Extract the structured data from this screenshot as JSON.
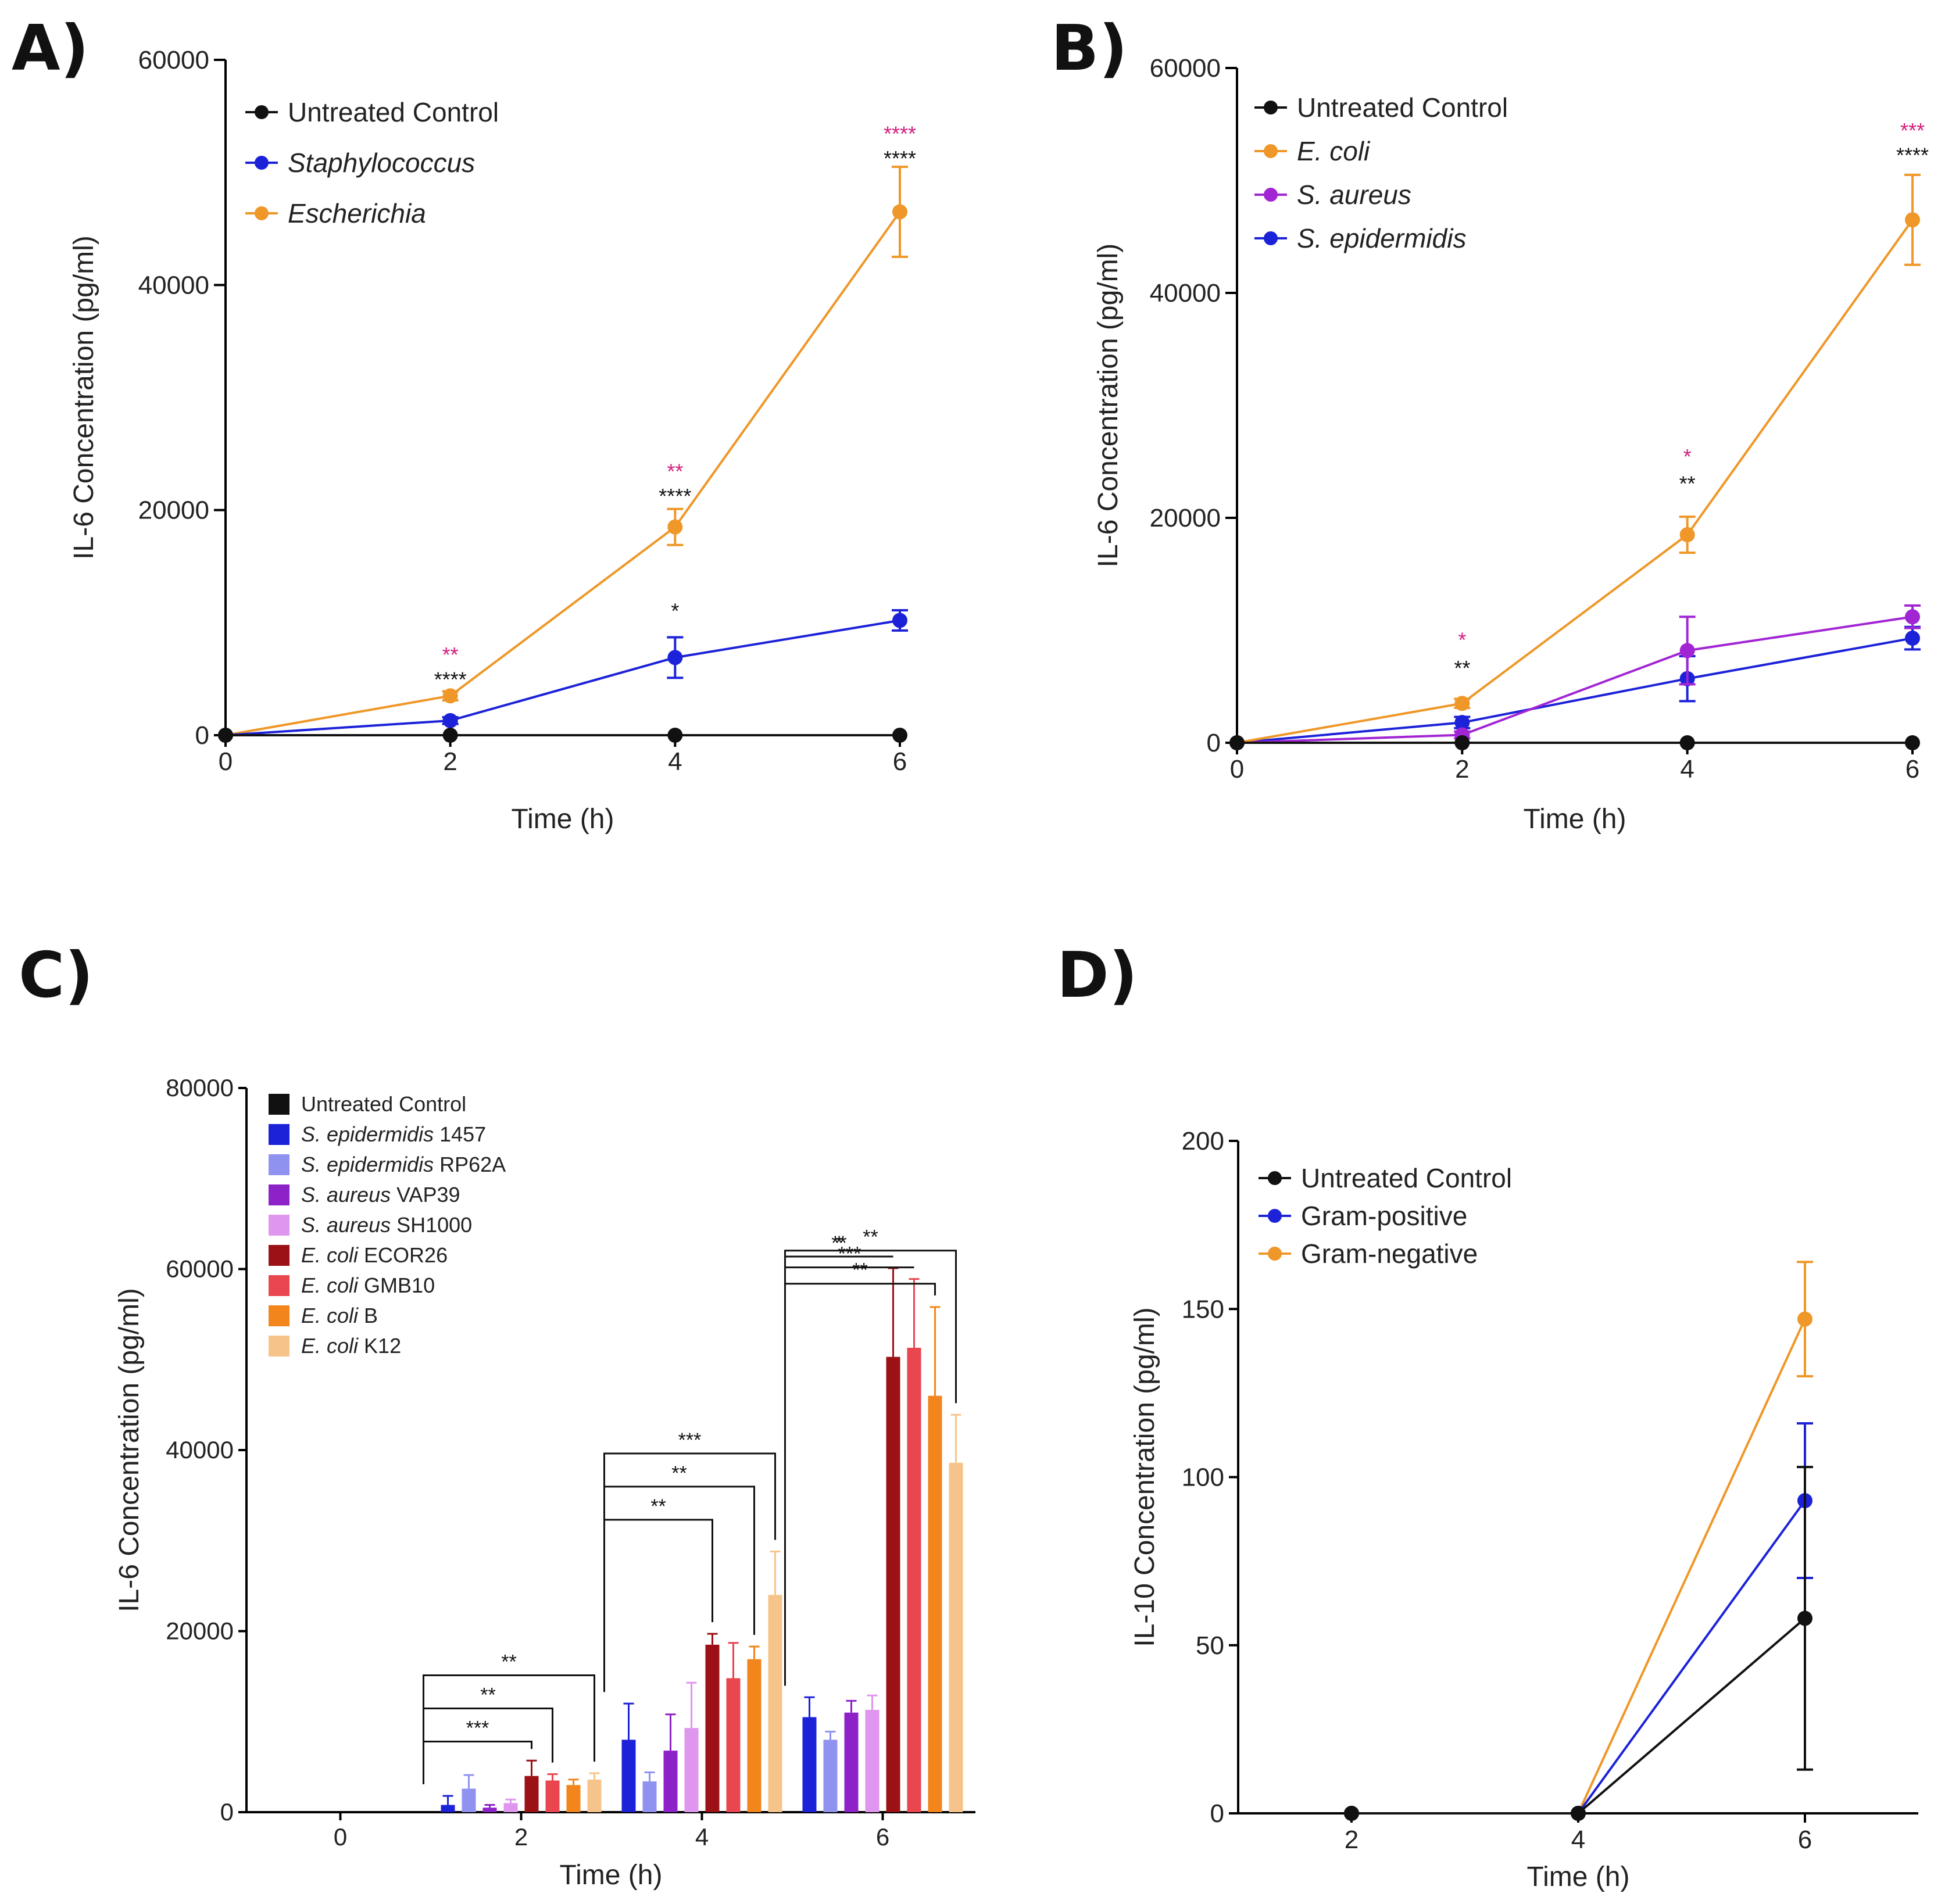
{
  "colors": {
    "black": "#111111",
    "blue": "#1c22d8",
    "orange": "#ef9728",
    "magenta": "#d21f7e",
    "purple": "#a225d4"
  },
  "chart_data": [
    {
      "panel": "A)",
      "type": "line",
      "xlabel": "Time (h)",
      "ylabel": "IL-6 Concentration (pg/ml)",
      "x_ticks": [
        "0",
        "2",
        "4",
        "6"
      ],
      "y_ticks": [
        "0",
        "20000",
        "40000",
        "60000"
      ],
      "xlim": [
        0,
        6
      ],
      "ylim": [
        0,
        60000
      ],
      "legend_position": "top-left",
      "series": [
        {
          "name": "Untreated Control",
          "italic": false,
          "color": "#111111",
          "x": [
            0,
            2,
            4,
            6
          ],
          "y": [
            0,
            0,
            0,
            0
          ],
          "err": [
            0,
            0,
            0,
            0
          ]
        },
        {
          "name": "Staphylococcus",
          "italic": true,
          "color": "#1c22d8",
          "x": [
            0,
            2,
            4,
            6
          ],
          "y": [
            0,
            1300,
            6900,
            10200
          ],
          "err": [
            0,
            300,
            1800,
            900
          ]
        },
        {
          "name": "Escherichia",
          "italic": true,
          "color": "#ef9728",
          "x": [
            0,
            2,
            4,
            6
          ],
          "y": [
            0,
            3500,
            18500,
            46500
          ],
          "err": [
            0,
            400,
            1600,
            4000
          ]
        }
      ],
      "annotations": [
        {
          "x": 2,
          "y": 6500,
          "text": "**",
          "color": "magenta"
        },
        {
          "x": 2,
          "y": 4300,
          "text": "****",
          "color": "black"
        },
        {
          "x": 4,
          "y": 22800,
          "text": "**",
          "color": "magenta"
        },
        {
          "x": 4,
          "y": 20600,
          "text": "****",
          "color": "black"
        },
        {
          "x": 4,
          "y": 10400,
          "text": "*",
          "color": "black"
        },
        {
          "x": 6,
          "y": 52800,
          "text": "****",
          "color": "magenta"
        },
        {
          "x": 6,
          "y": 50600,
          "text": "****",
          "color": "black"
        }
      ]
    },
    {
      "panel": "B)",
      "type": "line",
      "xlabel": "Time (h)",
      "ylabel": "IL-6 Concentration (pg/ml)",
      "x_ticks": [
        "0",
        "2",
        "4",
        "6"
      ],
      "y_ticks": [
        "0",
        "20000",
        "40000",
        "60000"
      ],
      "xlim": [
        0,
        6
      ],
      "ylim": [
        0,
        60000
      ],
      "legend_position": "top-left",
      "series": [
        {
          "name": "Untreated Control",
          "italic": false,
          "color": "#111111",
          "x": [
            0,
            2,
            4,
            6
          ],
          "y": [
            0,
            0,
            0,
            0
          ],
          "err": [
            0,
            0,
            0,
            0
          ]
        },
        {
          "name": "E. coli",
          "italic": true,
          "color": "#ef9728",
          "x": [
            0,
            2,
            4,
            6
          ],
          "y": [
            0,
            3500,
            18500,
            46500
          ],
          "err": [
            0,
            400,
            1600,
            4000
          ]
        },
        {
          "name": "S. aureus",
          "italic": true,
          "color": "#a225d4",
          "x": [
            0,
            2,
            4,
            6
          ],
          "y": [
            0,
            700,
            8200,
            11200
          ],
          "err": [
            0,
            300,
            3000,
            1000
          ]
        },
        {
          "name": "S. epidermidis",
          "italic": true,
          "color": "#1c22d8",
          "x": [
            0,
            2,
            4,
            6
          ],
          "y": [
            0,
            1800,
            5700,
            9300
          ],
          "err": [
            0,
            500,
            2000,
            1000
          ]
        }
      ],
      "annotations": [
        {
          "x": 2,
          "y": 8500,
          "text": "*",
          "color": "magenta"
        },
        {
          "x": 2,
          "y": 6000,
          "text": "**",
          "color": "black"
        },
        {
          "x": 4,
          "y": 24800,
          "text": "*",
          "color": "magenta"
        },
        {
          "x": 4,
          "y": 22400,
          "text": "**",
          "color": "black"
        },
        {
          "x": 6,
          "y": 53800,
          "text": "***",
          "color": "magenta"
        },
        {
          "x": 6,
          "y": 51600,
          "text": "****",
          "color": "black"
        }
      ]
    },
    {
      "panel": "C)",
      "type": "bar",
      "xlabel": "Time (h)",
      "ylabel": "IL-6 Concentration (pg/ml)",
      "categories": [
        "0",
        "2",
        "4",
        "6"
      ],
      "y_ticks": [
        "0",
        "20000",
        "40000",
        "60000",
        "80000"
      ],
      "ylim": [
        0,
        80000
      ],
      "legend_position": "top-left",
      "series": [
        {
          "name": "Untreated Control",
          "strain": "",
          "color": "#111111",
          "values": [
            0,
            0,
            0,
            0
          ],
          "err": [
            0,
            0,
            0,
            0
          ]
        },
        {
          "name": "S. epidermidis",
          "strain": " 1457",
          "color": "#1c22d8",
          "values": [
            0,
            800,
            8000,
            10500
          ],
          "err": [
            0,
            1000,
            4000,
            2200
          ]
        },
        {
          "name": "S. epidermidis",
          "strain": " RP62A",
          "color": "#8f93ef",
          "values": [
            0,
            2600,
            3400,
            8000
          ],
          "err": [
            0,
            1500,
            1000,
            900
          ]
        },
        {
          "name": "S. aureus",
          "strain": " VAP39",
          "color": "#8d22c9",
          "values": [
            0,
            500,
            6800,
            11000
          ],
          "err": [
            0,
            300,
            4000,
            1300
          ]
        },
        {
          "name": "S. aureus",
          "strain": " SH1000",
          "color": "#df96ee",
          "values": [
            0,
            1000,
            9300,
            11300
          ],
          "err": [
            0,
            400,
            5000,
            1600
          ]
        },
        {
          "name": "E. coli",
          "strain": " ECOR26",
          "color": "#9b1116",
          "values": [
            0,
            4000,
            18500,
            50300
          ],
          "err": [
            0,
            1700,
            1200,
            9800
          ]
        },
        {
          "name": "E. coli",
          "strain": " GMB10",
          "color": "#e9464f",
          "values": [
            0,
            3500,
            14800,
            51300
          ],
          "err": [
            0,
            700,
            3900,
            7600
          ]
        },
        {
          "name": "E. coli",
          "strain": " B",
          "color": "#f2851b",
          "values": [
            0,
            3000,
            16900,
            46000
          ],
          "err": [
            0,
            600,
            1400,
            9800
          ]
        },
        {
          "name": "E. coli",
          "strain": " K12",
          "color": "#f6c48a",
          "values": [
            0,
            3600,
            24000,
            38600
          ],
          "err": [
            0,
            700,
            4800,
            5300
          ]
        }
      ],
      "brackets": [
        {
          "category": 1,
          "from": 0,
          "to": 5,
          "level": 0,
          "text": "***"
        },
        {
          "category": 1,
          "from": 0,
          "to": 6,
          "level": 1,
          "text": "**"
        },
        {
          "category": 1,
          "from": 0,
          "to": 8,
          "level": 2,
          "text": "**"
        },
        {
          "category": 2,
          "from": 0,
          "to": 5,
          "level": 0,
          "text": "**"
        },
        {
          "category": 2,
          "from": 0,
          "to": 7,
          "level": 1,
          "text": "**"
        },
        {
          "category": 2,
          "from": 0,
          "to": 8,
          "level": 2,
          "text": "***"
        },
        {
          "category": 3,
          "from": 0,
          "to": 5,
          "level": 0,
          "text": "*"
        },
        {
          "category": 3,
          "from": 0,
          "to": 5,
          "level": 1,
          "text": "**"
        },
        {
          "category": 3,
          "from": 0,
          "to": 6,
          "level": 2,
          "text": "***"
        },
        {
          "category": 3,
          "from": 0,
          "to": 7,
          "level": 3,
          "text": "**"
        },
        {
          "category": 3,
          "from": 0,
          "to": 8,
          "level": 4,
          "text": "**"
        }
      ]
    },
    {
      "panel": "D)",
      "type": "line",
      "xlabel": "Time (h)",
      "ylabel": "IL-10 Concentration (pg/ml)",
      "x_ticks": [
        "2",
        "4",
        "6"
      ],
      "y_ticks": [
        "0",
        "50",
        "100",
        "150",
        "200"
      ],
      "xlim": [
        1,
        7
      ],
      "ylim": [
        0,
        200
      ],
      "legend_position": "top-left",
      "series": [
        {
          "name": "Untreated Control",
          "italic": false,
          "color": "#111111",
          "x": [
            2,
            4,
            6
          ],
          "y": [
            0,
            0,
            58
          ],
          "err": [
            0,
            0,
            45
          ]
        },
        {
          "name": "Gram-positive",
          "italic": false,
          "color": "#1c22d8",
          "x": [
            2,
            4,
            6
          ],
          "y": [
            0,
            0,
            93
          ],
          "err": [
            0,
            0,
            23
          ]
        },
        {
          "name": "Gram-negative",
          "italic": false,
          "color": "#ef9728",
          "x": [
            2,
            4,
            6
          ],
          "y": [
            0,
            0,
            147
          ],
          "err": [
            0,
            0,
            17
          ]
        }
      ]
    }
  ]
}
